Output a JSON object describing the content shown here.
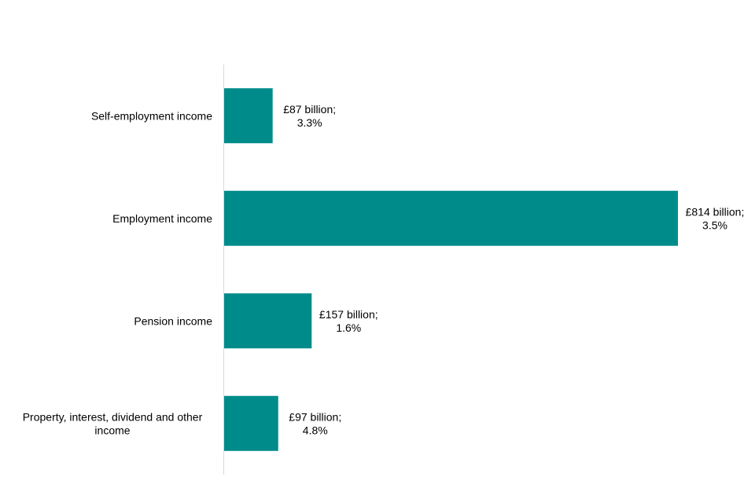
{
  "chart_data": {
    "type": "bar",
    "orientation": "horizontal",
    "categories": [
      [
        "Self-employment income"
      ],
      [
        "Employment income"
      ],
      [
        "Pension income"
      ],
      [
        "Property, interest, dividend and other",
        "income"
      ]
    ],
    "values": [
      87,
      814,
      157,
      97
    ],
    "value_unit": "£ billion",
    "data_labels": [
      [
        "£87 billion;",
        "3.3%"
      ],
      [
        "£814 billion;",
        "3.5%"
      ],
      [
        "£157 billion;",
        "1.6%"
      ],
      [
        "£97 billion;",
        "4.8%"
      ]
    ],
    "percent_change": [
      3.3,
      3.5,
      1.6,
      4.8
    ],
    "title": "",
    "xlabel": "",
    "ylabel": "",
    "xlim": [
      0,
      814
    ],
    "grid": false,
    "legend": "none",
    "colors": {
      "bar": "#008b8b",
      "axis": "#d9d9d9"
    }
  }
}
